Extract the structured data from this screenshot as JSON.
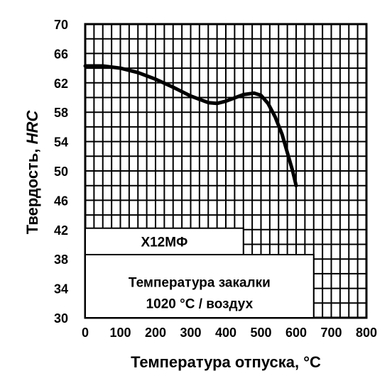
{
  "chart_data": {
    "type": "line",
    "xlabel_text": "Температура отпуска, ",
    "xlabel_unit": "°C",
    "ylabel_text": "Твердость, ",
    "ylabel_unit": "HRC",
    "xlim": [
      0,
      800
    ],
    "ylim": [
      30,
      70
    ],
    "x_ticks": [
      "0",
      "100",
      "200",
      "300",
      "400",
      "500",
      "600",
      "700",
      "800"
    ],
    "y_ticks": [
      "70",
      "66",
      "62",
      "58",
      "54",
      "50",
      "46",
      "42",
      "38",
      "34",
      "30"
    ],
    "grid": true,
    "series": [
      {
        "name": "Х12МФ",
        "x": [
          0,
          50,
          100,
          150,
          200,
          250,
          300,
          350,
          375,
          400,
          450,
          480,
          500,
          520,
          540,
          560,
          575,
          590,
          600
        ],
        "y": [
          64.3,
          64.3,
          64.0,
          63.4,
          62.5,
          61.4,
          60.2,
          59.3,
          59.2,
          59.5,
          60.4,
          60.6,
          60.3,
          59.2,
          57.4,
          55.0,
          52.5,
          50.0,
          48.0
        ]
      }
    ],
    "annotations": {
      "steel_grade": "Х12МФ",
      "quench_label": "Температура закалки",
      "quench_value": "1020 °С / воздух"
    }
  }
}
